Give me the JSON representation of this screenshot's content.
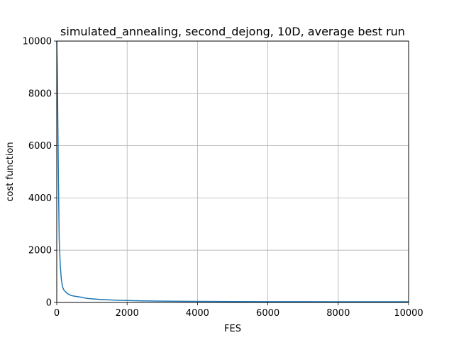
{
  "chart_data": {
    "type": "line",
    "title": "simulated_annealing, second_dejong, 10D, average best run",
    "xlabel": "FES",
    "ylabel": "cost function",
    "xlim": [
      0,
      10000
    ],
    "ylim": [
      0,
      10000
    ],
    "xticks": [
      0,
      2000,
      4000,
      6000,
      8000,
      10000
    ],
    "yticks": [
      0,
      2000,
      4000,
      6000,
      8000,
      10000
    ],
    "xtick_labels": [
      "0",
      "2000",
      "4000",
      "6000",
      "8000",
      "10000"
    ],
    "ytick_labels": [
      "0",
      "2000",
      "4000",
      "6000",
      "8000",
      "10000"
    ],
    "grid": true,
    "series": [
      {
        "color": "#1f77b4",
        "x": [
          0,
          15,
          30,
          50,
          70,
          100,
          130,
          160,
          200,
          300,
          400,
          500,
          600,
          700,
          800,
          900,
          1000,
          1200,
          1400,
          1600,
          2000,
          2400,
          3000,
          4000,
          5000,
          6000,
          7000,
          8000,
          9000,
          10000
        ],
        "y": [
          10000,
          9000,
          7000,
          4500,
          2400,
          1400,
          900,
          620,
          480,
          340,
          270,
          240,
          220,
          200,
          170,
          150,
          140,
          120,
          105,
          90,
          75,
          60,
          50,
          40,
          35,
          32,
          30,
          28,
          27,
          26
        ]
      }
    ]
  }
}
